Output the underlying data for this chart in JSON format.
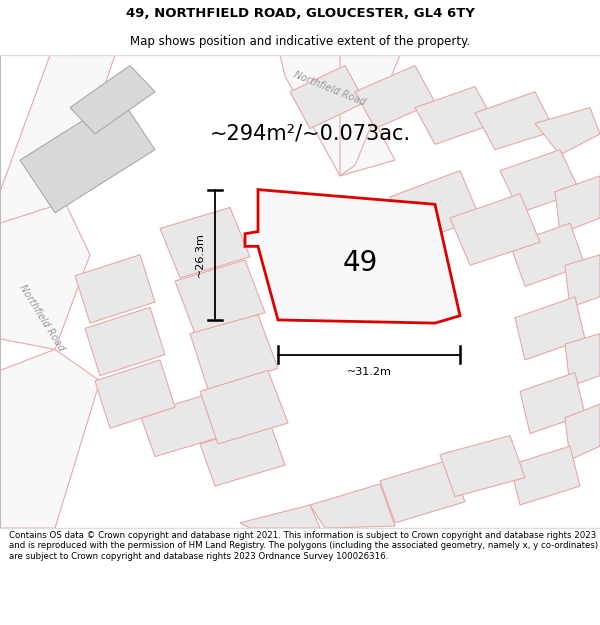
{
  "title": "49, NORTHFIELD ROAD, GLOUCESTER, GL4 6TY",
  "subtitle": "Map shows position and indicative extent of the property.",
  "area_label": "~294m²/~0.073ac.",
  "number_label": "49",
  "dim_vertical": "~26.3m",
  "dim_horizontal": "~31.2m",
  "road_label_bottom": "Northfield Road",
  "road_label_top": "Northfield Road",
  "footer": "Contains OS data © Crown copyright and database right 2021. This information is subject to Crown copyright and database rights 2023 and is reproduced with the permission of HM Land Registry. The polygons (including the associated geometry, namely x, y co-ordinates) are subject to Crown copyright and database rights 2023 Ordnance Survey 100026316.",
  "bg_color": "#f2f2f2",
  "map_bg": "#f5f5f5",
  "road_color": "#e8a8a8",
  "plot_color": "#e8e8e8",
  "plot_edge": "#cccccc",
  "highlight_fill": "#f8f8f8",
  "highlight_edge": "#dd0000",
  "title_fontsize": 9.5,
  "subtitle_fontsize": 8.5,
  "area_fontsize": 15,
  "number_fontsize": 20,
  "footer_fontsize": 6.2
}
